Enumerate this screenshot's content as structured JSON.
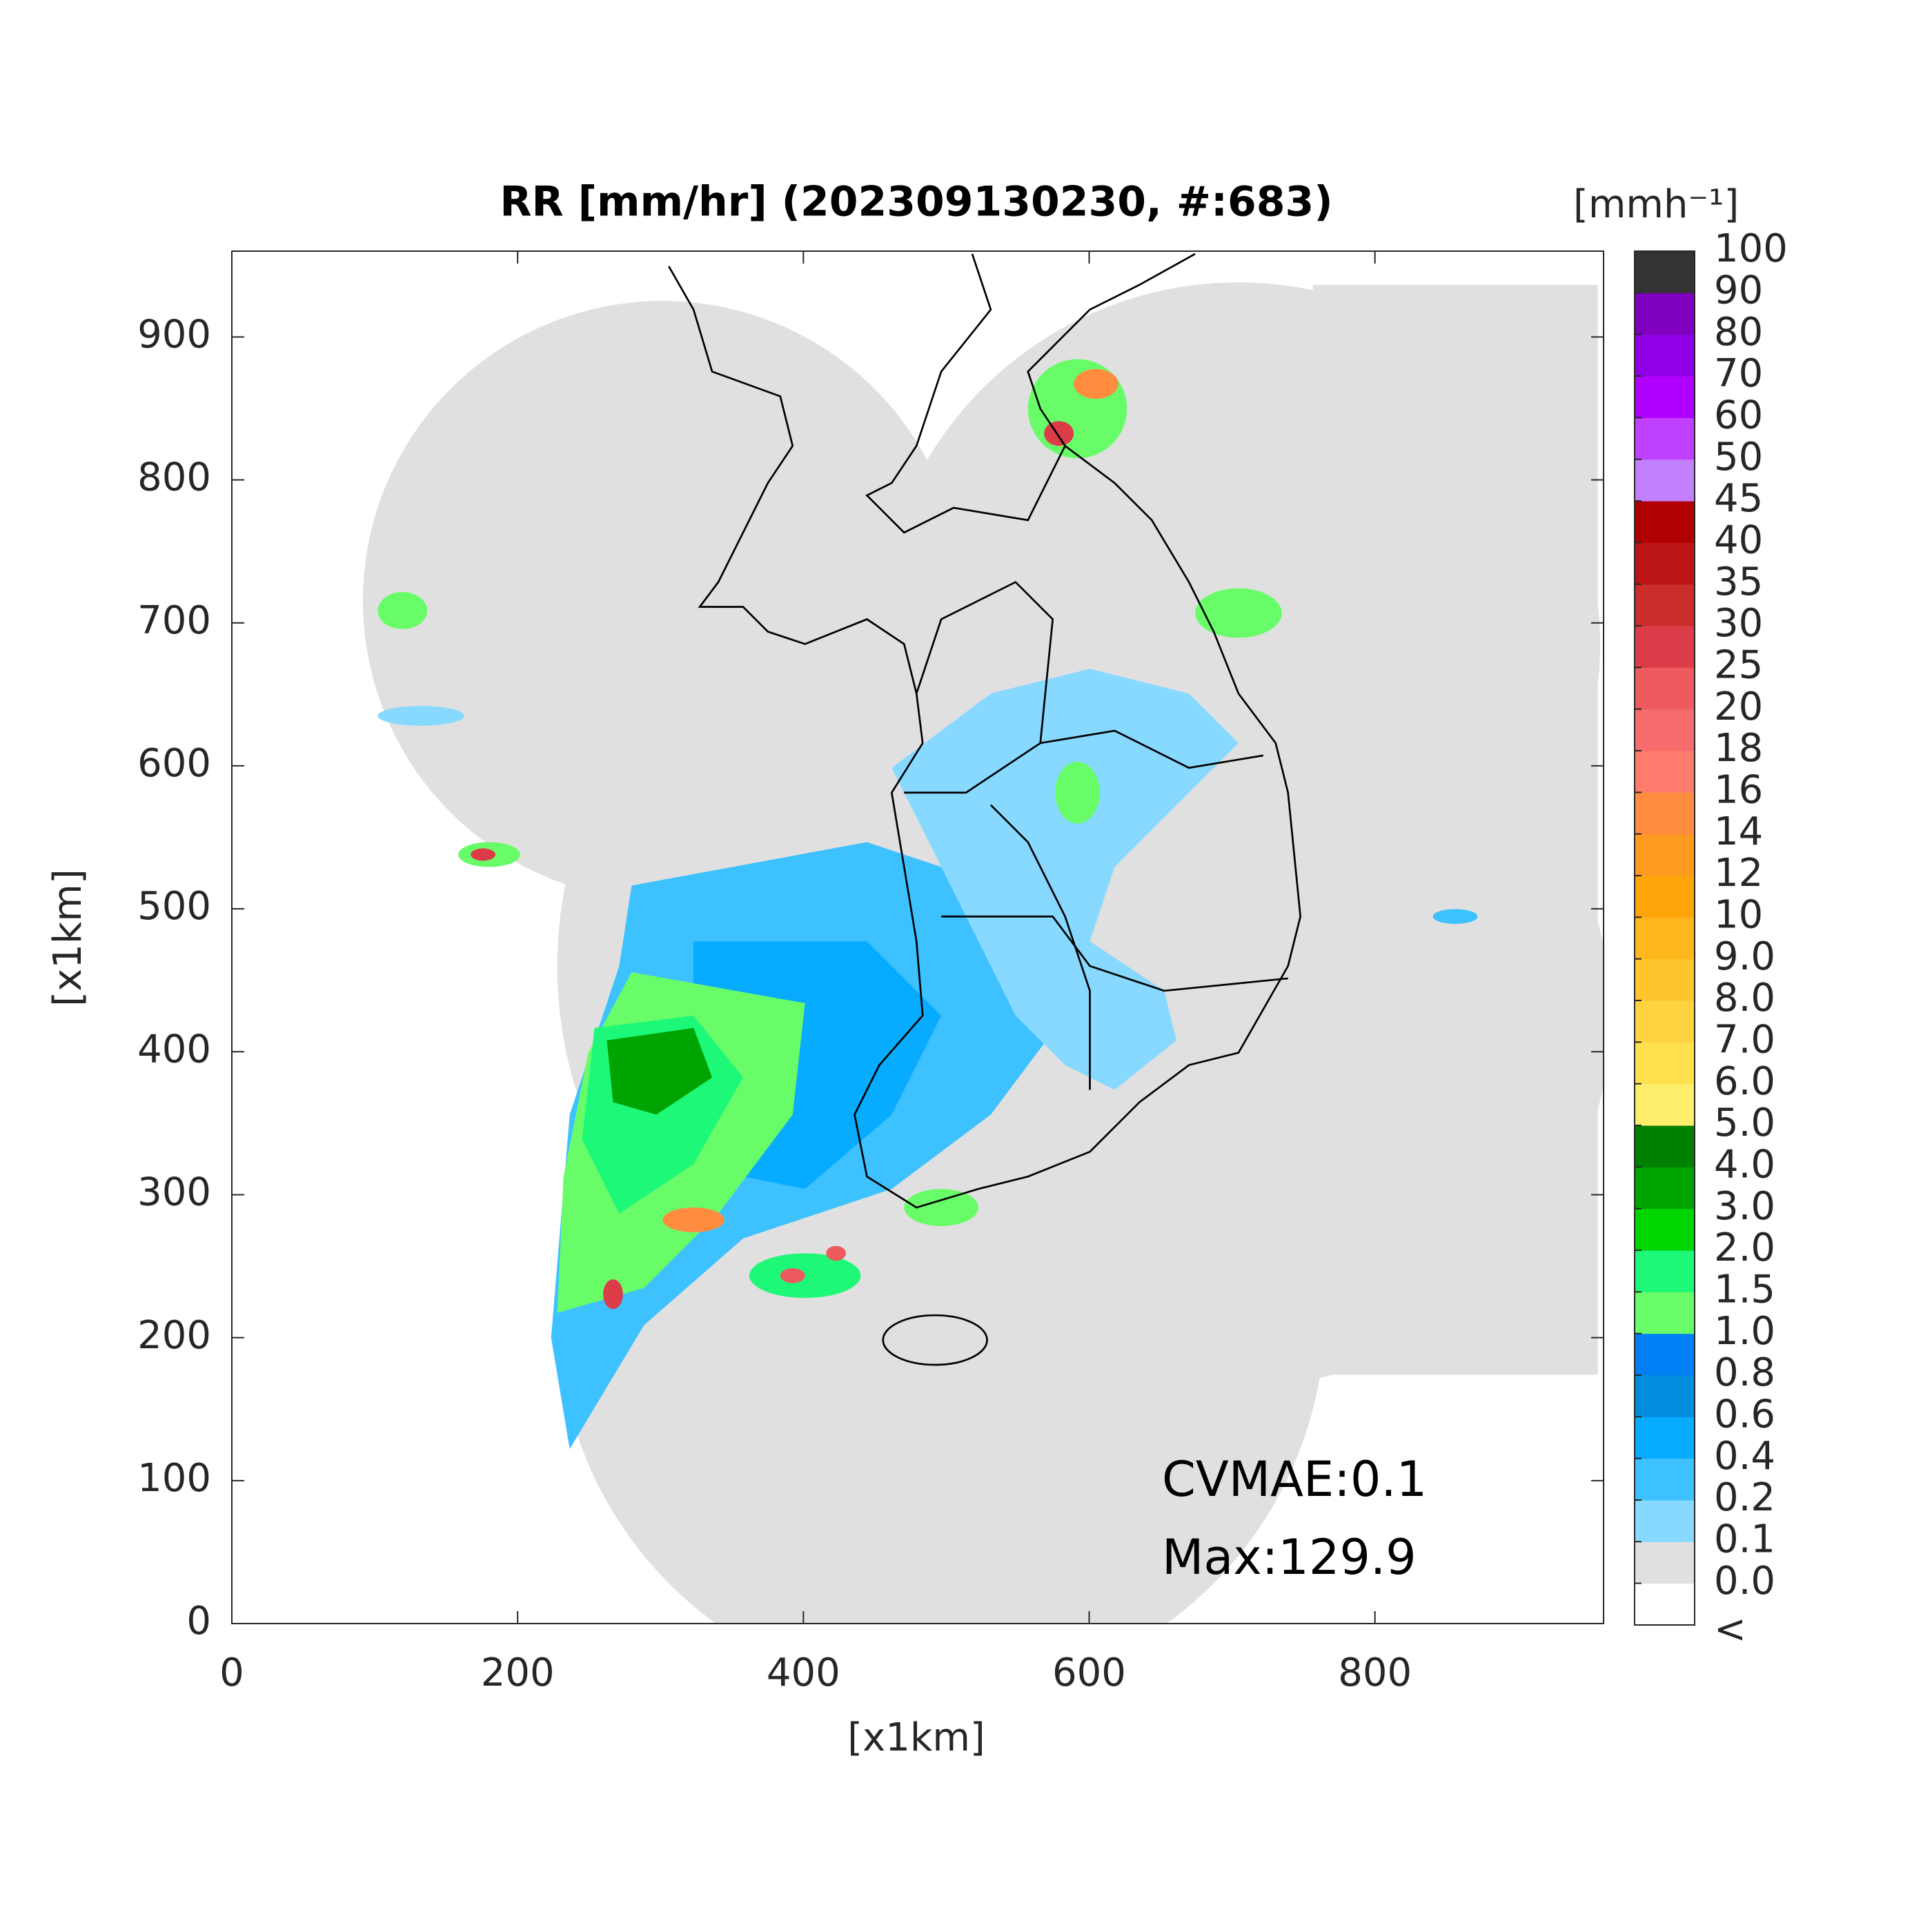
{
  "chart_data": {
    "type": "radar-map",
    "title": "RR [mm/hr] (202309130230, #:683)",
    "x_label": "[x1km]",
    "y_label": "[x1km]",
    "xlim": [
      0,
      960
    ],
    "ylim": [
      0,
      960
    ],
    "xticks": [
      0,
      200,
      400,
      600,
      800
    ],
    "yticks": [
      0,
      100,
      200,
      300,
      400,
      500,
      600,
      700,
      800,
      900
    ],
    "annotations": [
      "CVMAE:0.1",
      "Max:129.9"
    ],
    "colorbar": {
      "label": "[mmh⁻¹]",
      "ticks": [
        "<",
        {
          "value": 0,
          "label": "0.0"
        },
        0.1,
        0.2,
        0.4,
        0.6,
        0.8,
        {
          "value": 1,
          "label": "1.0"
        },
        1.5,
        {
          "value": 2,
          "label": "2.0"
        },
        {
          "value": 3,
          "label": "3.0"
        },
        {
          "value": 4,
          "label": "4.0"
        },
        {
          "value": 5,
          "label": "5.0"
        },
        {
          "value": 6,
          "label": "6.0"
        },
        {
          "value": 7,
          "label": "7.0"
        },
        {
          "value": 8,
          "label": "8.0"
        },
        {
          "value": 9,
          "label": "9.0"
        },
        10,
        12,
        14,
        16,
        18,
        20,
        25,
        30,
        35,
        40,
        45,
        50,
        60,
        70,
        80,
        90,
        100
      ],
      "colors": [
        "#ffffff",
        "#e0e0e0",
        "#87d9ff",
        "#3ec1ff",
        "#07abff",
        "#008dde",
        "#007ff5",
        "#69fc69",
        "#1ef878",
        "#00d500",
        "#00a400",
        "#008000",
        "#ffee6b",
        "#ffe04d",
        "#ffd33f",
        "#ffc52c",
        "#ffb71d",
        "#ffa50a",
        "#ff9a21",
        "#ff8c3f",
        "#ff7b6b",
        "#f66c6c",
        "#ed5b5e",
        "#dc3c47",
        "#cb2c2c",
        "#bd1515",
        "#b00000",
        "#c280ff",
        "#c040ff",
        "#b000ff",
        "#9000e6",
        "#7f00bf",
        "#333333"
      ]
    }
  }
}
